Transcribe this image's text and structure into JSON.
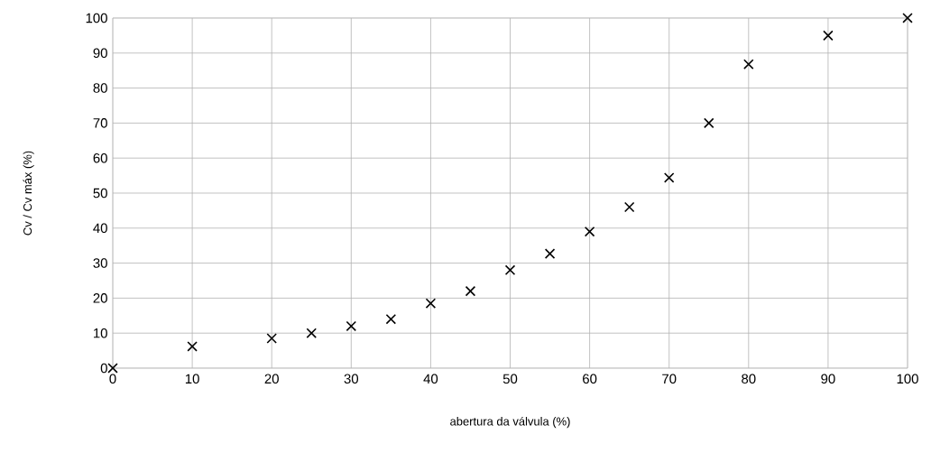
{
  "chart_data": {
    "type": "scatter",
    "xlabel": "abertura da válvula (%)",
    "ylabel": "Cv / Cv máx (%)",
    "x": [
      0,
      10,
      20,
      25,
      30,
      35,
      40,
      45,
      50,
      55,
      60,
      65,
      70,
      75,
      80,
      90,
      100
    ],
    "series": [
      {
        "color": "#000000",
        "values": [
          0,
          6.2,
          8.5,
          10,
          12,
          14,
          18.5,
          22,
          28,
          32.7,
          39,
          46,
          54.4,
          70,
          86.8,
          95,
          100
        ]
      }
    ],
    "xlim": [
      0,
      100
    ],
    "ylim": [
      0,
      100
    ],
    "xticks": [
      0,
      10,
      20,
      30,
      40,
      50,
      60,
      70,
      80,
      90,
      100
    ],
    "yticks": [
      0,
      10,
      20,
      30,
      40,
      50,
      60,
      70,
      80,
      90,
      100
    ],
    "grid": true,
    "marker": "cross"
  }
}
